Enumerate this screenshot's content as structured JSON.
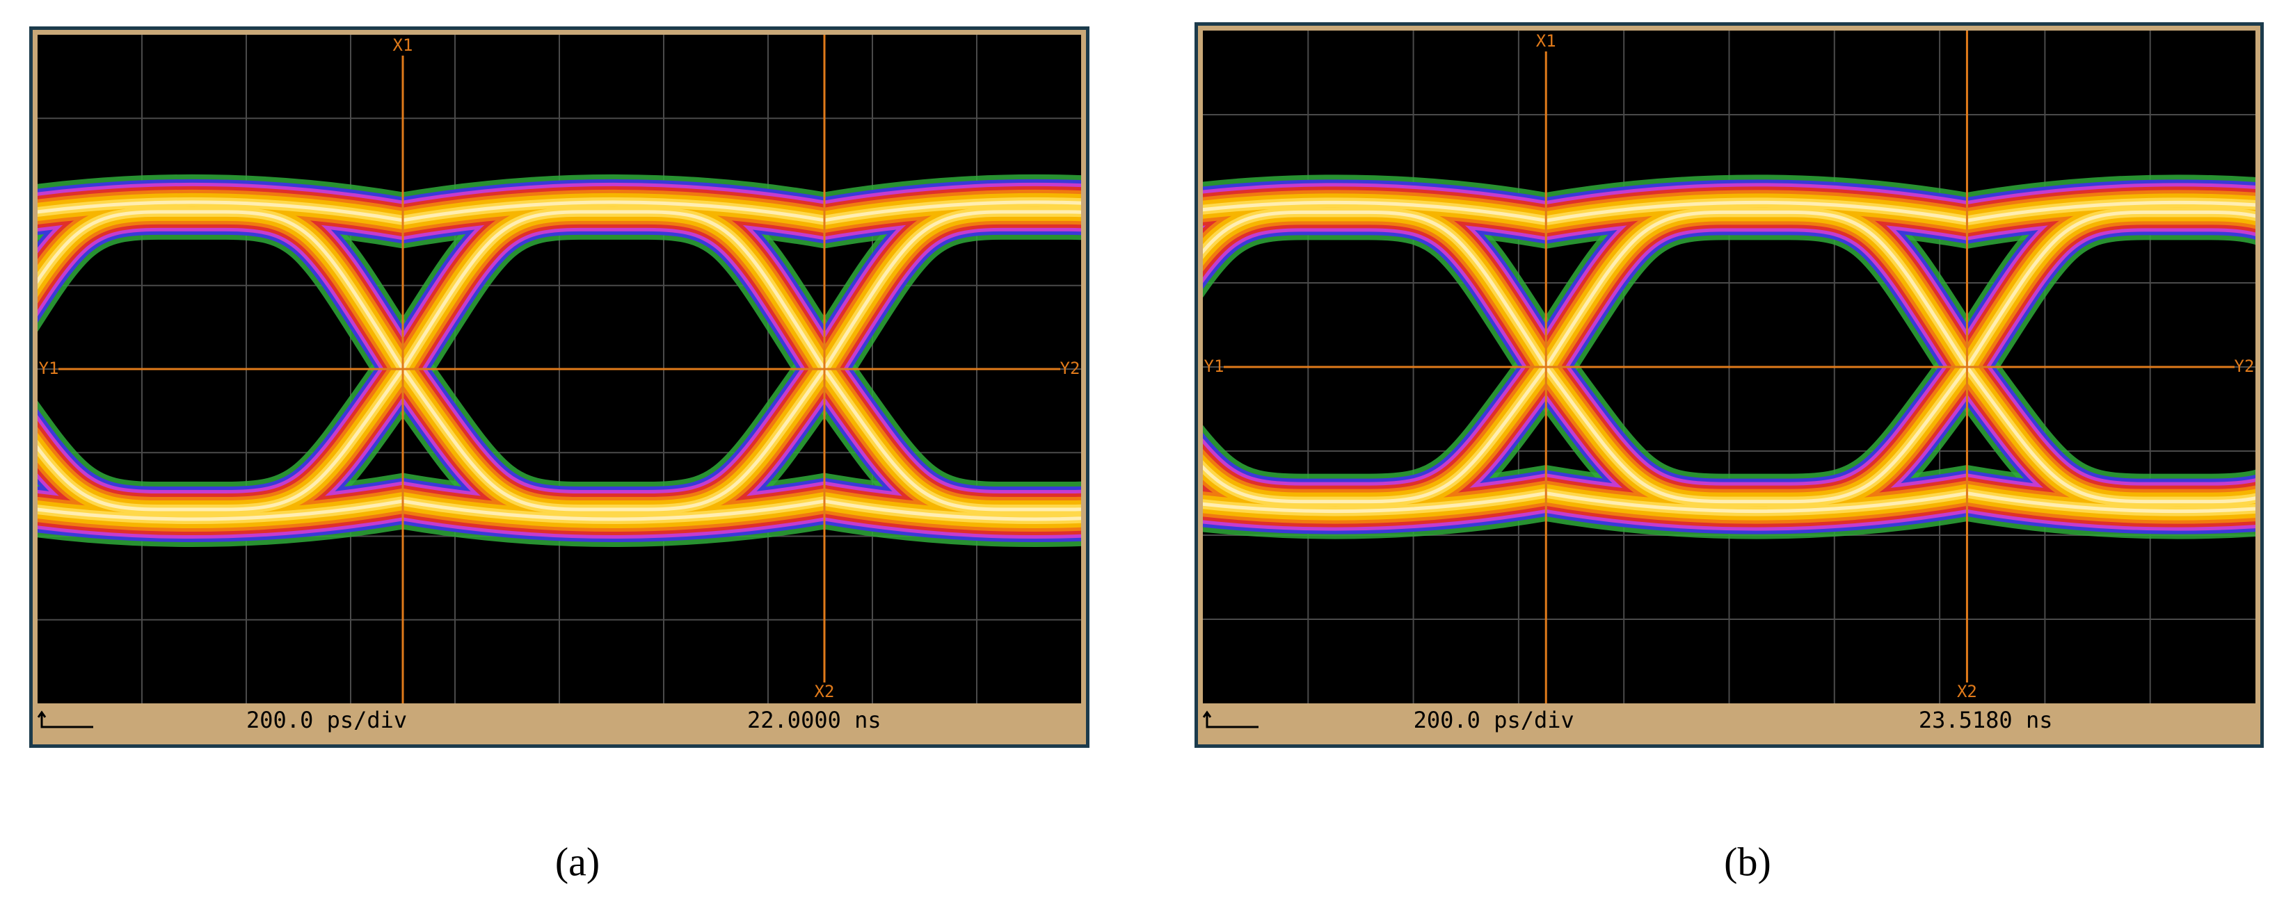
{
  "panels": [
    {
      "label": "(a)",
      "cursors": {
        "x1": "X1",
        "x2": "X2",
        "y1": "Y1",
        "y2": "Y2"
      },
      "status": {
        "timebase": "200.0 ps/div",
        "position": "22.0000 ns"
      }
    },
    {
      "label": "(b)",
      "cursors": {
        "x1": "X1",
        "x2": "X2",
        "y1": "Y1",
        "y2": "Y2"
      },
      "status": {
        "timebase": "200.0 ps/div",
        "position": "23.5180 ns"
      }
    }
  ]
}
